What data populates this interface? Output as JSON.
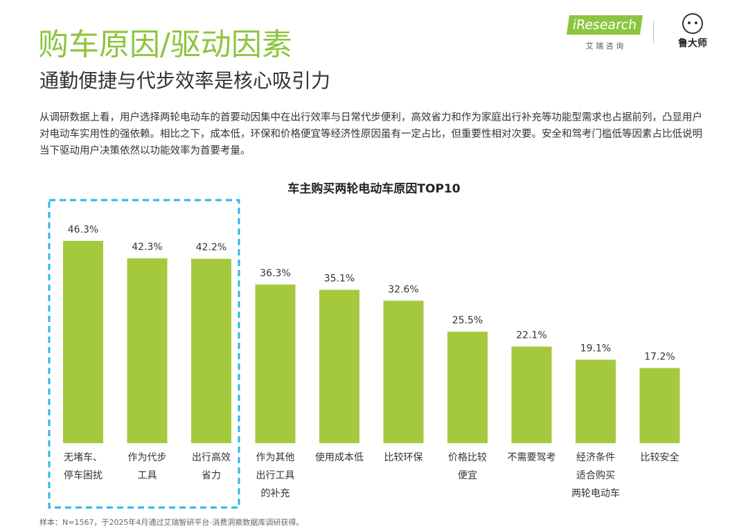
{
  "header": {
    "title": "购车原因/驱动因素",
    "subtitle": "通勤便捷与代步效率是核心吸引力",
    "logo_brand": "iResearch",
    "logo_brand_cn": "艾 瑞 咨 询",
    "logo_partner": "鲁大师"
  },
  "description": "从调研数据上看，用户选择两轮电动车的首要动因集中在出行效率与日常代步便利，高效省力和作为家庭出行补充等功能型需求也占据前列，凸显用户对电动车实用性的强依赖。相比之下，成本低，环保和价格便宜等经济性原因虽有一定占比，但重要性相对次要。安全和驾考门槛低等因素占比低说明当下驱动用户决策依然以功能效率为首要考量。",
  "chart_data": {
    "type": "bar",
    "title": "车主购买两轮电动车原因TOP10",
    "categories": [
      "无堵车、\n停车困扰",
      "作为代步\n工具",
      "出行高效\n省力",
      "作为其他\n出行工具\n的补充",
      "使用成本低",
      "比较环保",
      "价格比较\n便宜",
      "不需要驾考",
      "经济条件\n适合购买\n两轮电动车",
      "比较安全"
    ],
    "values": [
      46.3,
      42.3,
      42.2,
      36.3,
      35.1,
      32.6,
      25.5,
      22.1,
      19.1,
      17.2
    ],
    "value_labels": [
      "46.3%",
      "42.3%",
      "42.2%",
      "36.3%",
      "35.1%",
      "32.6%",
      "25.5%",
      "22.1%",
      "19.1%",
      "17.2%"
    ],
    "color": "#a5c93c"
  },
  "footnote": "样本：N=1567，于2025年4月通过艾瑞智研平台-消费洞察数据库调研获得。"
}
